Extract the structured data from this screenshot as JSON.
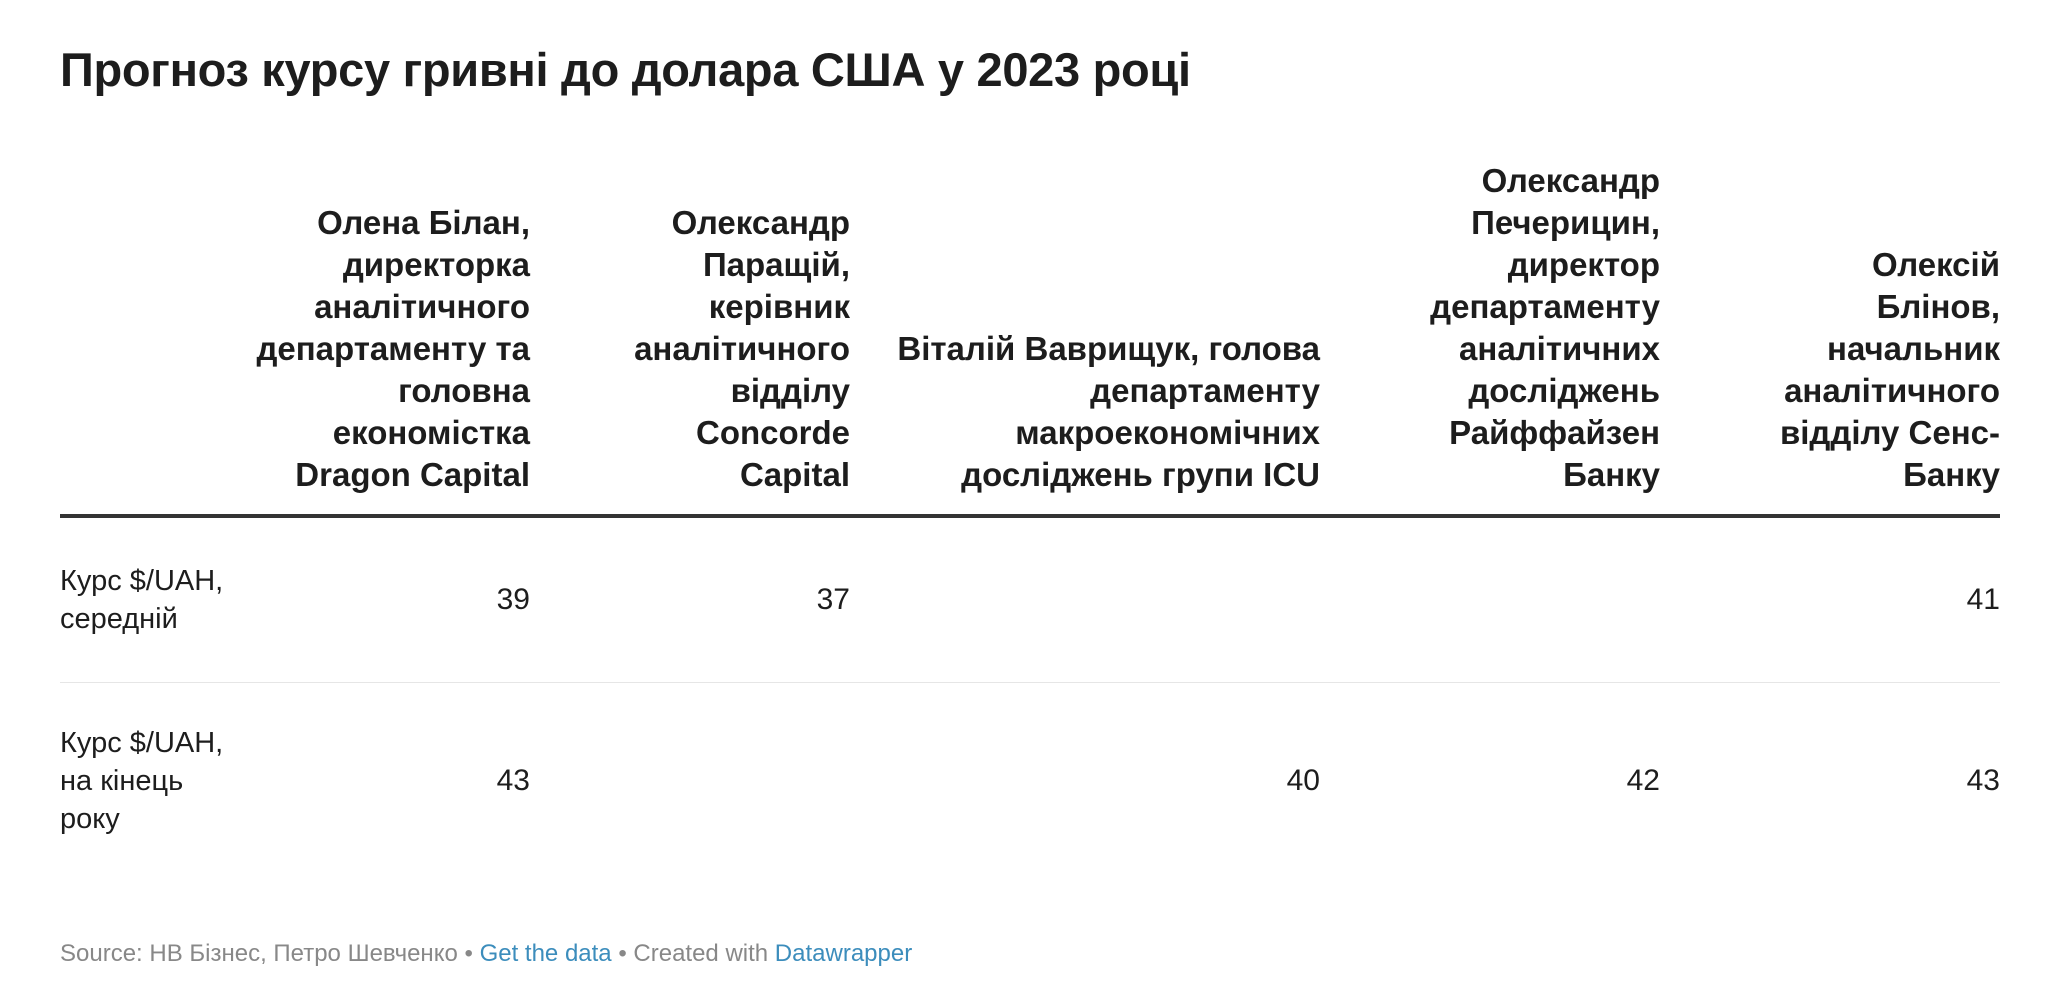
{
  "title": "Прогноз курсу гривні до долара США у 2023 році",
  "chart_data": {
    "type": "table",
    "title": "Прогноз курсу гривні до долара США у 2023 році",
    "columns": [
      "",
      "Олена Білан, директорка аналітичного департаменту та головна економістка Dragon Capital",
      "Олександр Паращій, керівник аналітичного відділу Concorde Capital",
      "Віталій Ваврищук, голова департаменту макроекономічних досліджень групи ICU",
      "Олександр Печерицин, директор департаменту аналітичних досліджень Райффайзен Банку",
      "Олексій Блінов, начальник аналітичного відділу Сенс-Банку"
    ],
    "rows": [
      {
        "label": "Курс $/UAH, середній",
        "values": [
          "39",
          "37",
          "",
          "",
          "41"
        ]
      },
      {
        "label": "Курс $/UAH, на кінець року",
        "values": [
          "43",
          "",
          "40",
          "42",
          "43"
        ]
      }
    ]
  },
  "footer": {
    "source": "Source: НВ Бізнес, Петро Шевченко",
    "sep1": " • ",
    "get_data": "Get the data",
    "sep2": " • Created with ",
    "datawrapper": "Datawrapper"
  },
  "colors": {
    "text": "#1d1d1d",
    "header_rule": "#333333",
    "row_rule": "#e6e6e6",
    "footer_text": "#888888",
    "link": "#3c8dbc"
  }
}
